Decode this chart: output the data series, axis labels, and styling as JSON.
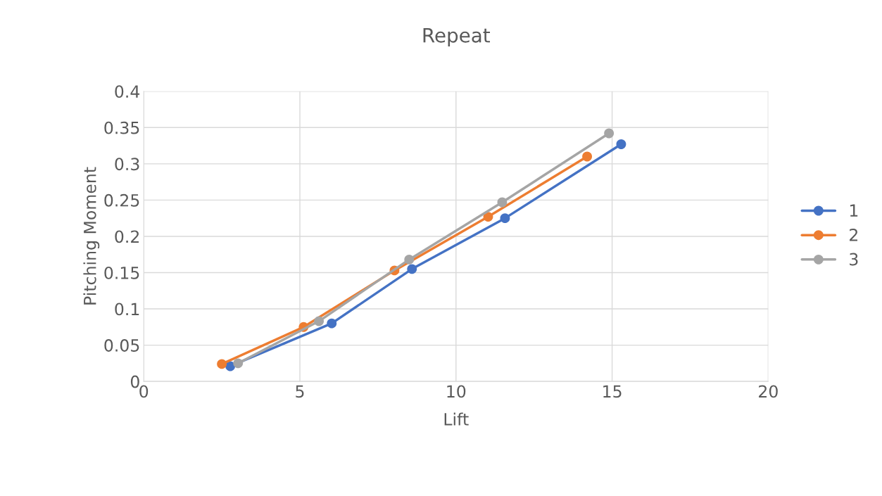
{
  "chart_data": {
    "type": "line",
    "title": "Repeat",
    "xlabel": "Lift",
    "ylabel": "Pitching Moment",
    "series": [
      {
        "name": "1",
        "color": "#4472c4",
        "x": [
          2.77,
          6.02,
          8.59,
          11.57,
          15.29
        ],
        "values": [
          0.021,
          0.08,
          0.155,
          0.225,
          0.327
        ]
      },
      {
        "name": "2",
        "color": "#ed7d31",
        "x": [
          2.5,
          5.12,
          8.03,
          11.03,
          14.2
        ],
        "values": [
          0.024,
          0.075,
          0.153,
          0.227,
          0.31
        ]
      },
      {
        "name": "3",
        "color": "#a5a5a5",
        "x": [
          3.02,
          5.61,
          8.5,
          11.48,
          14.9
        ],
        "values": [
          0.025,
          0.083,
          0.168,
          0.247,
          0.342
        ]
      }
    ],
    "xlim": [
      0,
      20
    ],
    "xticks": [
      0,
      5,
      10,
      15,
      20
    ],
    "ylim": [
      0,
      0.4
    ],
    "yticks": [
      0,
      0.05,
      0.1,
      0.15,
      0.2,
      0.25,
      0.3,
      0.35,
      0.4
    ],
    "grid": true,
    "legend": "right",
    "marker": "circle",
    "line_style": "solid"
  }
}
